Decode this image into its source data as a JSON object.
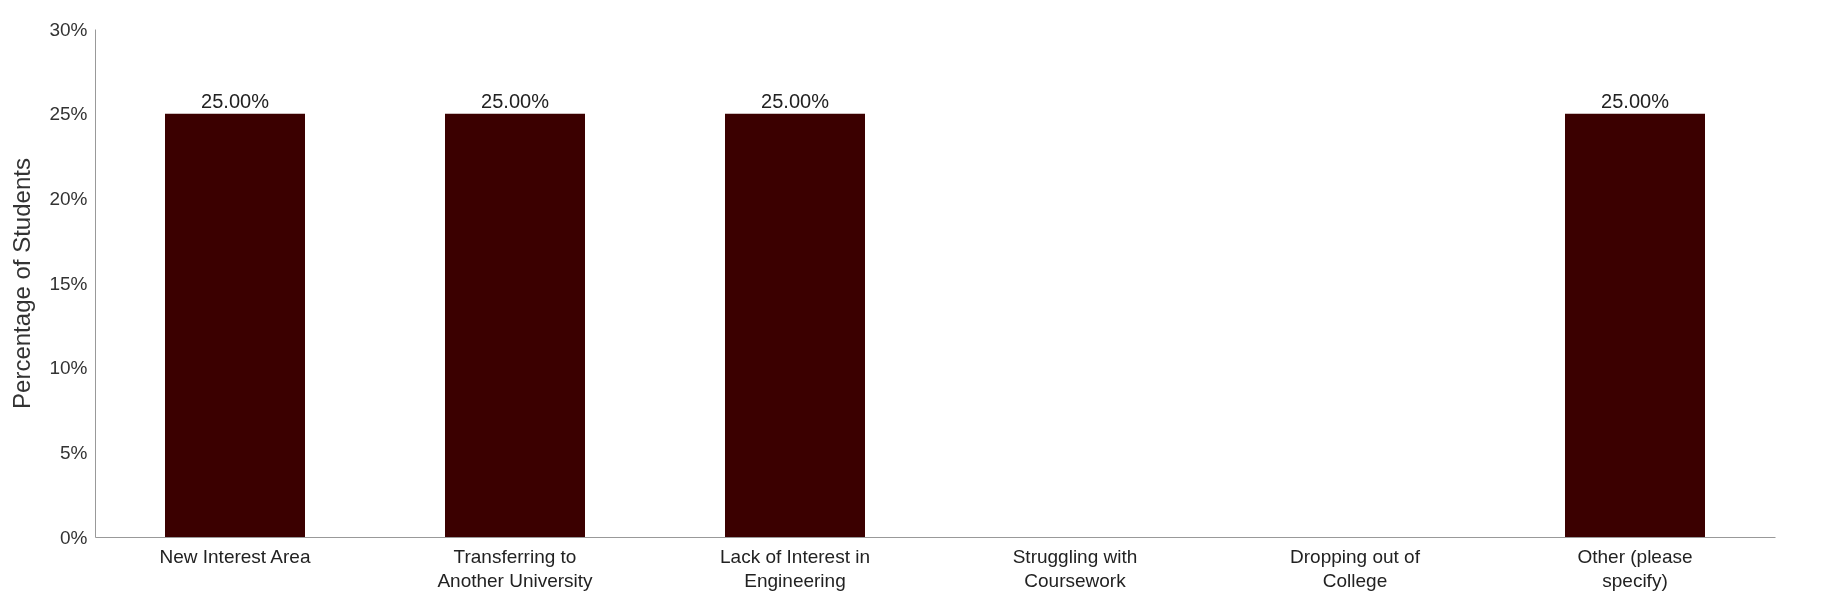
{
  "chart_data": {
    "type": "bar",
    "ylabel": "Percentage of Students",
    "categories": [
      "New Interest Area",
      "Transferring to Another University",
      "Lack of Interest in Engineering",
      "Struggling with Coursework",
      "Dropping out of College",
      "Other (please specify)"
    ],
    "values": [
      25,
      25,
      25,
      0,
      0,
      25
    ],
    "value_labels": [
      "25.00%",
      "25.00%",
      "25.00%",
      null,
      null,
      "25.00%"
    ],
    "color": "#3b0000",
    "ylim": [
      0,
      30
    ],
    "yticks": [
      {
        "value": 0,
        "label": "0%"
      },
      {
        "value": 5,
        "label": "5%"
      },
      {
        "value": 10,
        "label": "10%"
      },
      {
        "value": 15,
        "label": "15%"
      },
      {
        "value": 20,
        "label": "20%"
      },
      {
        "value": 25,
        "label": "25%"
      },
      {
        "value": 30,
        "label": "30%"
      }
    ],
    "grid": false
  }
}
